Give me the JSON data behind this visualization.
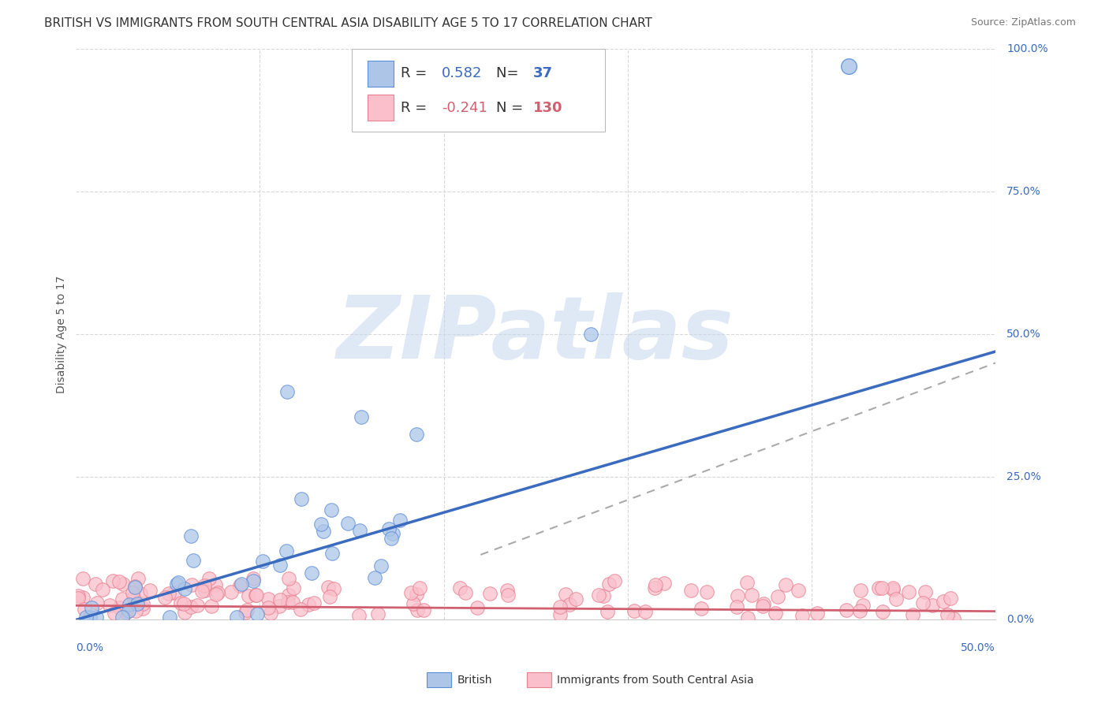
{
  "title": "BRITISH VS IMMIGRANTS FROM SOUTH CENTRAL ASIA DISABILITY AGE 5 TO 17 CORRELATION CHART",
  "source": "Source: ZipAtlas.com",
  "xlim": [
    0.0,
    0.5
  ],
  "ylim": [
    0.0,
    1.0
  ],
  "british_R": 0.582,
  "british_N": 37,
  "immigrant_R": -0.241,
  "immigrant_N": 130,
  "british_color": "#adc6e8",
  "british_edge_color": "#5b8dd9",
  "british_line_color": "#3a6bbf",
  "immigrant_color": "#f9c0cc",
  "immigrant_edge_color": "#e88090",
  "immigrant_line_color": "#d06070",
  "watermark": "ZIPatlas",
  "watermark_color": "#c5d8ee",
  "background_color": "#ffffff",
  "grid_color": "#d8d8d8",
  "title_fontsize": 11,
  "source_fontsize": 9,
  "legend_fontsize": 13,
  "axis_label_color": "#3a6bbf",
  "ylabel_color": "#555555"
}
